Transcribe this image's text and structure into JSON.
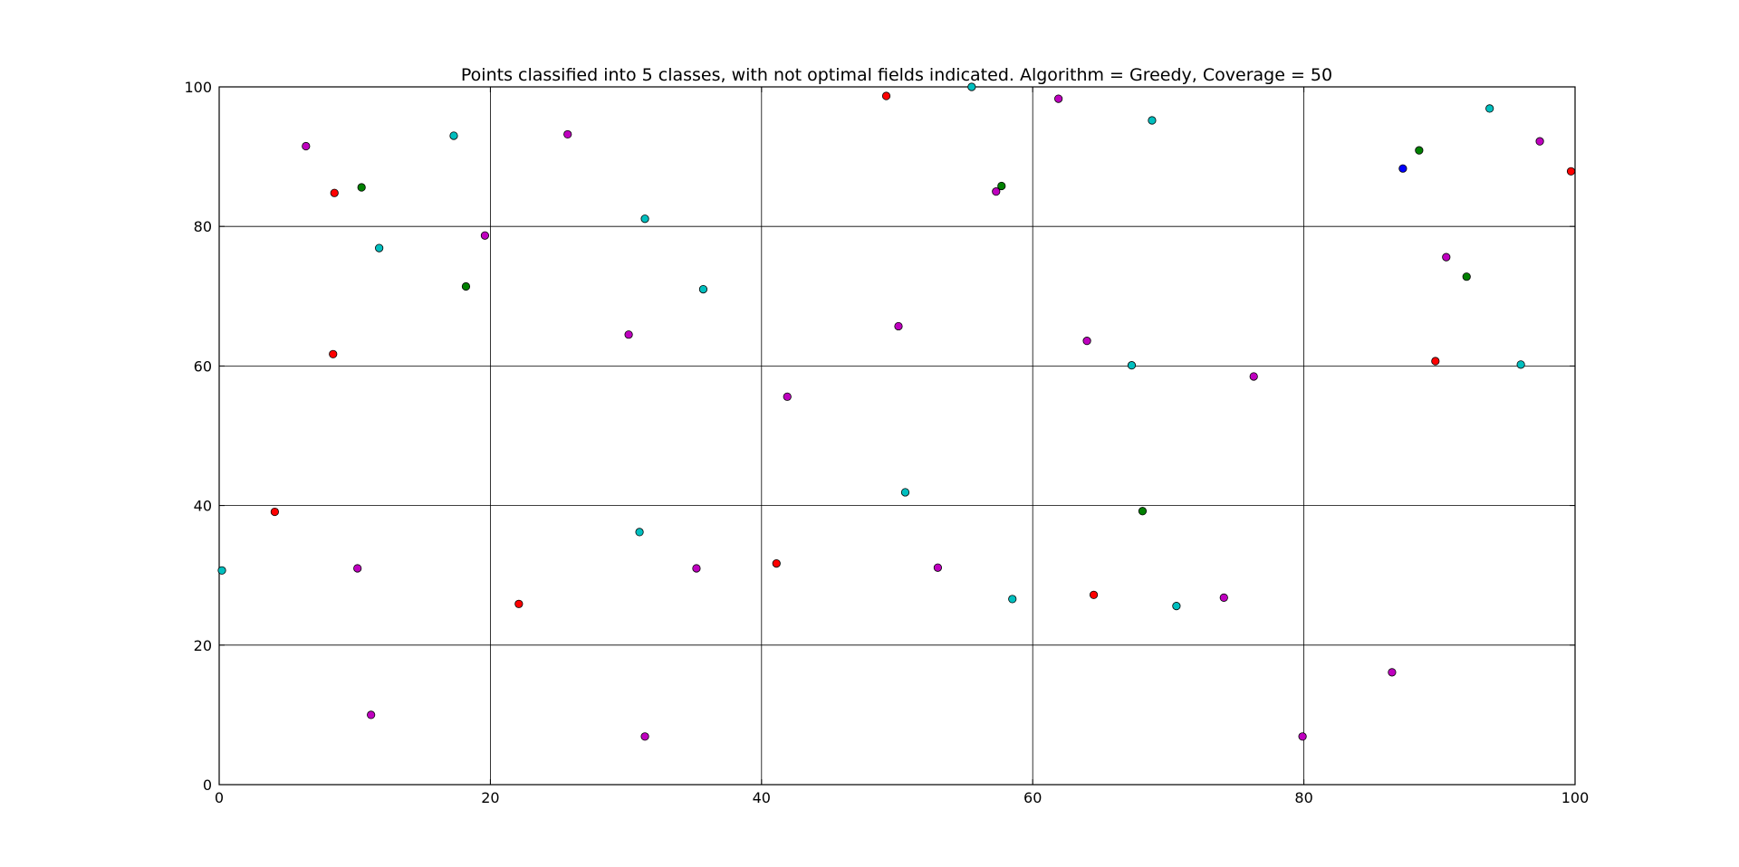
{
  "chart_data": {
    "type": "scatter",
    "title": "Points classified into 5 classes, with not optimal fields indicated. Algorithm = Greedy, Coverage = 50",
    "xlabel": "",
    "ylabel": "",
    "xlim": [
      0,
      100
    ],
    "ylim": [
      0,
      100
    ],
    "x_ticks": [
      0,
      20,
      40,
      60,
      80,
      100
    ],
    "y_ticks": [
      0,
      20,
      40,
      60,
      80,
      100
    ],
    "grid": true,
    "colors": {
      "red": "#ff0000",
      "green": "#008000",
      "blue": "#0000ff",
      "cyan": "#00bfbf",
      "magenta": "#bf00bf"
    },
    "series": [
      {
        "color": "#ff0000",
        "points": [
          [
            8.5,
            84.8
          ],
          [
            8.4,
            61.7
          ],
          [
            4.1,
            39.1
          ],
          [
            22.1,
            25.9
          ],
          [
            41.1,
            31.7
          ],
          [
            49.2,
            98.7
          ],
          [
            64.5,
            27.2
          ],
          [
            89.7,
            60.7
          ],
          [
            99.7,
            87.9
          ]
        ]
      },
      {
        "color": "#008000",
        "points": [
          [
            10.5,
            85.6
          ],
          [
            18.2,
            71.4
          ],
          [
            57.7,
            85.8
          ],
          [
            68.1,
            39.2
          ],
          [
            88.5,
            90.9
          ],
          [
            92.0,
            72.8
          ]
        ]
      },
      {
        "color": "#0000ff",
        "points": [
          [
            87.3,
            88.3
          ]
        ]
      },
      {
        "color": "#00bfbf",
        "points": [
          [
            0.2,
            30.7
          ],
          [
            11.8,
            76.9
          ],
          [
            17.3,
            93.0
          ],
          [
            31.0,
            36.2
          ],
          [
            31.4,
            81.1
          ],
          [
            35.7,
            71.0
          ],
          [
            50.6,
            41.9
          ],
          [
            55.5,
            100.0
          ],
          [
            58.5,
            26.6
          ],
          [
            67.3,
            60.1
          ],
          [
            68.8,
            95.2
          ],
          [
            70.6,
            25.6
          ],
          [
            93.7,
            96.9
          ],
          [
            96.0,
            60.2
          ]
        ]
      },
      {
        "color": "#bf00bf",
        "points": [
          [
            6.4,
            91.5
          ],
          [
            10.2,
            31.0
          ],
          [
            11.2,
            10.0
          ],
          [
            19.6,
            78.7
          ],
          [
            25.7,
            93.2
          ],
          [
            30.2,
            64.5
          ],
          [
            31.4,
            6.9
          ],
          [
            35.2,
            31.0
          ],
          [
            41.9,
            55.6
          ],
          [
            50.1,
            65.7
          ],
          [
            53.0,
            31.1
          ],
          [
            57.3,
            85.0
          ],
          [
            61.9,
            98.3
          ],
          [
            64.0,
            63.6
          ],
          [
            74.1,
            26.8
          ],
          [
            76.3,
            58.5
          ],
          [
            79.9,
            6.9
          ],
          [
            86.5,
            16.1
          ],
          [
            90.5,
            75.6
          ],
          [
            97.4,
            92.2
          ]
        ]
      }
    ]
  }
}
